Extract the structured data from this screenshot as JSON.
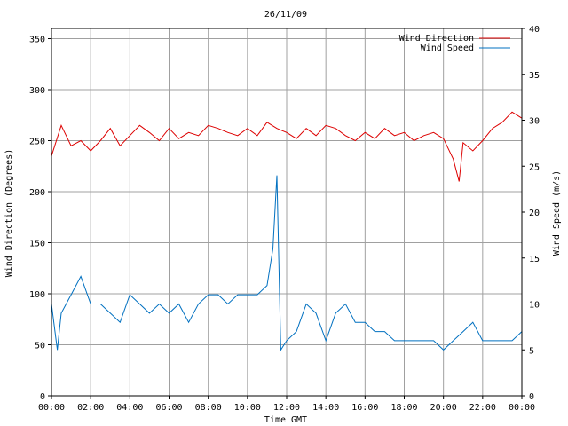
{
  "chart_data": {
    "type": "line",
    "title": "26/11/09",
    "xlabel": "Time GMT",
    "ylabel_left": "Wind Direction (Degrees)",
    "ylabel_right": "Wind Speed (m/s)",
    "x_ticks": [
      "00:00",
      "02:00",
      "04:00",
      "06:00",
      "08:00",
      "10:00",
      "12:00",
      "14:00",
      "16:00",
      "18:00",
      "20:00",
      "22:00",
      "00:00"
    ],
    "y_left_ticks": [
      0,
      50,
      100,
      150,
      200,
      250,
      300,
      350
    ],
    "y_left_range": [
      0,
      360
    ],
    "y_right_ticks": [
      0,
      5,
      10,
      15,
      20,
      25,
      30,
      35,
      40
    ],
    "y_right_range": [
      0,
      40
    ],
    "x_range_hours": [
      0,
      24
    ],
    "grid": true,
    "legend_position": "top-right",
    "series": [
      {
        "name": "Wind Direction",
        "axis": "left",
        "color": "#dd0000",
        "x_hours": [
          0,
          0.5,
          1,
          1.5,
          2,
          2.5,
          3,
          3.5,
          4,
          4.5,
          5,
          5.5,
          6,
          6.5,
          7,
          7.5,
          8,
          8.5,
          9,
          9.5,
          10,
          10.5,
          11,
          11.5,
          12,
          12.5,
          13,
          13.5,
          14,
          14.5,
          15,
          15.5,
          16,
          16.5,
          17,
          17.5,
          18,
          18.5,
          19,
          19.5,
          20,
          20.5,
          20.8,
          21,
          21.5,
          22,
          22.5,
          23,
          23.5,
          24
        ],
        "values": [
          235,
          265,
          245,
          250,
          240,
          250,
          262,
          245,
          255,
          265,
          258,
          250,
          262,
          252,
          258,
          255,
          265,
          262,
          258,
          255,
          262,
          255,
          268,
          262,
          258,
          252,
          262,
          255,
          265,
          262,
          255,
          250,
          258,
          252,
          262,
          255,
          258,
          250,
          255,
          258,
          252,
          232,
          210,
          248,
          240,
          250,
          262,
          268,
          278,
          272
        ]
      },
      {
        "name": "Wind Speed",
        "axis": "right",
        "color": "#0070c0",
        "x_hours": [
          0,
          0.3,
          0.5,
          1,
          1.5,
          2,
          2.5,
          3,
          3.5,
          4,
          4.5,
          5,
          5.5,
          6,
          6.5,
          7,
          7.5,
          8,
          8.5,
          9,
          9.5,
          10,
          10.5,
          11,
          11.3,
          11.5,
          11.7,
          12,
          12.5,
          13,
          13.5,
          14,
          14.5,
          15,
          15.5,
          16,
          16.5,
          17,
          17.5,
          18,
          18.5,
          19,
          19.5,
          20,
          20.5,
          21,
          21.5,
          22,
          22.5,
          23,
          23.5,
          24
        ],
        "values": [
          10,
          5,
          9,
          11,
          13,
          10,
          10,
          9,
          8,
          11,
          10,
          9,
          10,
          9,
          10,
          8,
          10,
          11,
          11,
          10,
          11,
          11,
          11,
          12,
          16,
          24,
          5,
          6,
          7,
          10,
          9,
          6,
          9,
          10,
          8,
          8,
          7,
          7,
          6,
          6,
          6,
          6,
          6,
          5,
          6,
          7,
          8,
          6,
          6,
          6,
          6,
          7
        ]
      }
    ]
  }
}
